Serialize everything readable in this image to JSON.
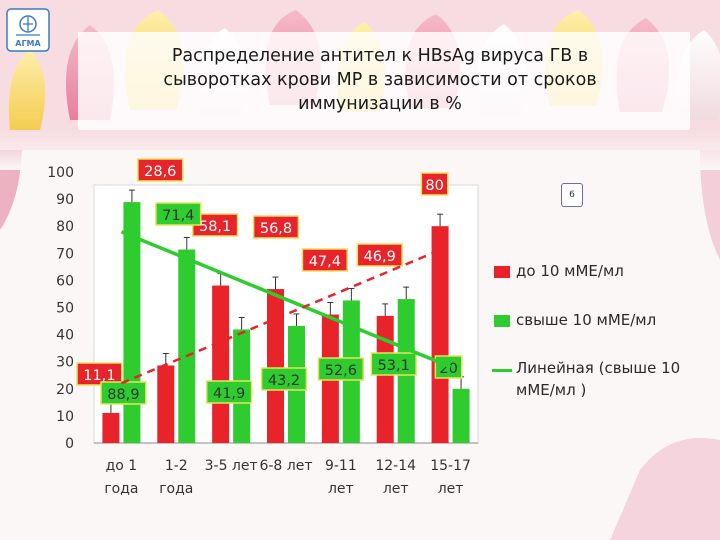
{
  "slide": {
    "title": "Распределение  антител к  HBsAg  вируса ГВ в\nсыворотках крови  МР    в зависимости  от сроков\nиммунизации в %",
    "page_number": "6",
    "logo_text": "АГМА"
  },
  "chart_data": {
    "type": "bar",
    "categories": [
      [
        "до 1",
        "года"
      ],
      [
        "1-2",
        "года"
      ],
      [
        "3-5 лет",
        ""
      ],
      [
        "6-8 лет",
        ""
      ],
      [
        "9-11",
        "лет"
      ],
      [
        "12-14",
        "лет"
      ],
      [
        "15-17",
        "лет"
      ]
    ],
    "series": [
      {
        "name": "до 10 мМЕ/мл",
        "color": "#e8232a",
        "values": [
          11.1,
          28.6,
          58.1,
          56.8,
          47.4,
          46.9,
          80
        ],
        "labels": [
          "11,1",
          "28,6",
          "58,1",
          "56,8",
          "47,4",
          "46,9",
          "80"
        ]
      },
      {
        "name": "свыше 10 мМЕ/мл",
        "color": "#2ecc2e",
        "values": [
          88.9,
          71.4,
          41.9,
          43.2,
          52.6,
          53.1,
          20
        ],
        "labels": [
          "88,9",
          "71,4",
          "41,9",
          "43,2",
          "52,6",
          "53,1",
          "20"
        ]
      }
    ],
    "trendline": {
      "name": "Линейная (свыше 10\nмМЕ/мл )",
      "color": "#2ecc2e",
      "style": "solid"
    },
    "trendline_red": {
      "color": "#e8232a",
      "style": "dashed"
    },
    "yticks": [
      0,
      10,
      20,
      30,
      40,
      50,
      60,
      70,
      80,
      90,
      100
    ],
    "ylim": [
      0,
      100
    ],
    "error_bars": true,
    "legend_position": "right"
  }
}
